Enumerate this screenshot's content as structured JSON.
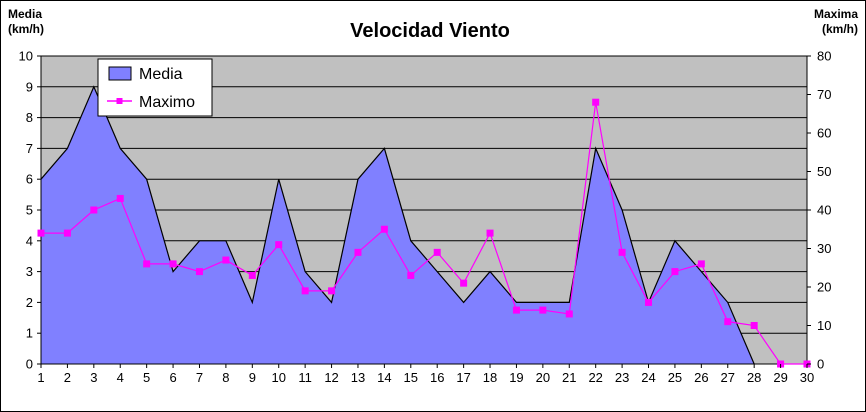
{
  "chart_data": {
    "type": "area",
    "title": "Velocidad Viento",
    "ylabel_left": [
      "Media",
      "(km/h)"
    ],
    "ylabel_right": [
      "Maxima",
      "(km/h)"
    ],
    "x": [
      1,
      2,
      3,
      4,
      5,
      6,
      7,
      8,
      9,
      10,
      11,
      12,
      13,
      14,
      15,
      16,
      17,
      18,
      19,
      20,
      21,
      22,
      23,
      24,
      25,
      26,
      27,
      28,
      29,
      30
    ],
    "ylim_left": [
      0,
      10
    ],
    "ylim_right": [
      0,
      80
    ],
    "yticks_left": [
      0,
      1,
      2,
      3,
      4,
      5,
      6,
      7,
      8,
      9,
      10
    ],
    "yticks_right": [
      0,
      10,
      20,
      30,
      40,
      50,
      60,
      70,
      80
    ],
    "grid": true,
    "legend_placement": "top-left",
    "series": [
      {
        "name": "Media",
        "type": "area",
        "axis": "left",
        "color": "#8080ff",
        "values": [
          6,
          7,
          9,
          7,
          6,
          3,
          4,
          4,
          2,
          6,
          3,
          2,
          6,
          7,
          4,
          3,
          2,
          3,
          2,
          2,
          2,
          7,
          5,
          2,
          4,
          3,
          2,
          0,
          null,
          null
        ]
      },
      {
        "name": "Maximo",
        "type": "line",
        "axis": "right",
        "color": "#ff00ff",
        "values": [
          34,
          34,
          40,
          43,
          26,
          26,
          24,
          27,
          23,
          31,
          19,
          19,
          29,
          35,
          23,
          29,
          21,
          34,
          14,
          14,
          13,
          68,
          29,
          16,
          24,
          26,
          11,
          10,
          0,
          0
        ]
      }
    ]
  }
}
